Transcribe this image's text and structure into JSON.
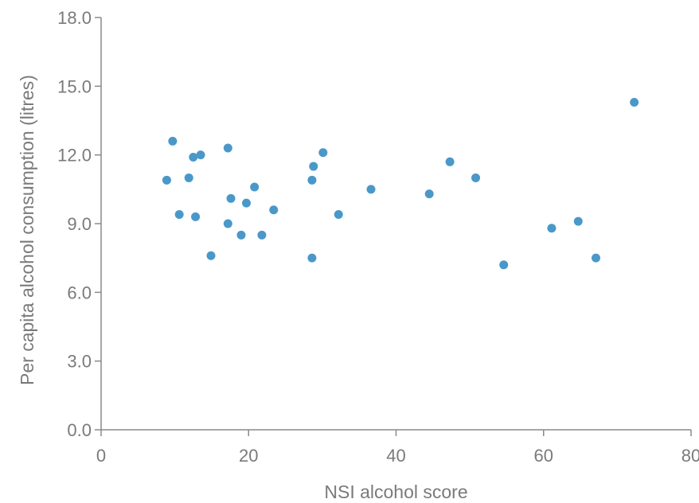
{
  "chart_data": {
    "type": "scatter",
    "title": "",
    "xlabel": "NSI alcohol score",
    "ylabel": "Per capita alcohol consumption (litres)",
    "xlim": [
      0,
      80
    ],
    "ylim": [
      0,
      18
    ],
    "xticks": [
      {
        "value": 0,
        "label": "0"
      },
      {
        "value": 20,
        "label": "20"
      },
      {
        "value": 40,
        "label": "40"
      },
      {
        "value": 60,
        "label": "60"
      },
      {
        "value": 80,
        "label": "80"
      }
    ],
    "yticks": [
      {
        "value": 0,
        "label": "0.0"
      },
      {
        "value": 3,
        "label": "3.0"
      },
      {
        "value": 6,
        "label": "6.0"
      },
      {
        "value": 9,
        "label": "9.0"
      },
      {
        "value": 12,
        "label": "12.0"
      },
      {
        "value": 15,
        "label": "15.0"
      },
      {
        "value": 18,
        "label": "18.0"
      }
    ],
    "grid": false,
    "color": "#4a98c9",
    "points": [
      {
        "x": 8.9,
        "y": 10.9
      },
      {
        "x": 9.7,
        "y": 12.6
      },
      {
        "x": 10.6,
        "y": 9.4
      },
      {
        "x": 11.9,
        "y": 11.0
      },
      {
        "x": 12.5,
        "y": 11.9
      },
      {
        "x": 12.8,
        "y": 9.3
      },
      {
        "x": 13.5,
        "y": 12.0
      },
      {
        "x": 14.9,
        "y": 7.6
      },
      {
        "x": 17.2,
        "y": 12.3
      },
      {
        "x": 17.2,
        "y": 9.0
      },
      {
        "x": 17.6,
        "y": 10.1
      },
      {
        "x": 19.0,
        "y": 8.5
      },
      {
        "x": 19.7,
        "y": 9.9
      },
      {
        "x": 20.8,
        "y": 10.6
      },
      {
        "x": 21.8,
        "y": 8.5
      },
      {
        "x": 23.4,
        "y": 9.6
      },
      {
        "x": 28.6,
        "y": 10.9
      },
      {
        "x": 28.8,
        "y": 11.5
      },
      {
        "x": 28.6,
        "y": 7.5
      },
      {
        "x": 30.1,
        "y": 12.1
      },
      {
        "x": 32.2,
        "y": 9.4
      },
      {
        "x": 36.6,
        "y": 10.5
      },
      {
        "x": 44.5,
        "y": 10.3
      },
      {
        "x": 47.3,
        "y": 11.7
      },
      {
        "x": 50.8,
        "y": 11.0
      },
      {
        "x": 54.6,
        "y": 7.2
      },
      {
        "x": 61.1,
        "y": 8.8
      },
      {
        "x": 64.7,
        "y": 9.1
      },
      {
        "x": 67.1,
        "y": 7.5
      },
      {
        "x": 72.3,
        "y": 14.3
      }
    ]
  }
}
